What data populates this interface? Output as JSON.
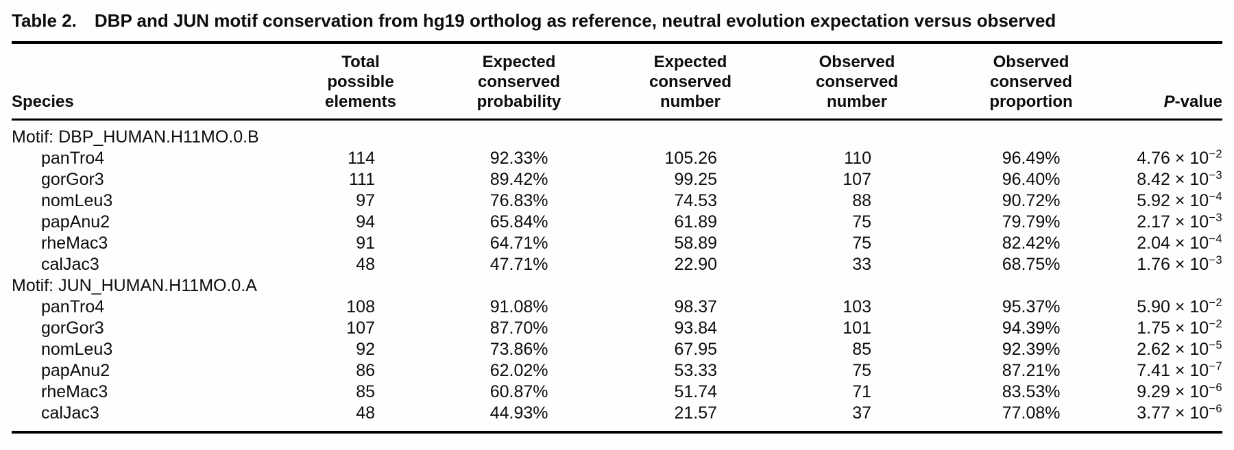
{
  "table": {
    "title_label": "Table 2.",
    "title_text": "DBP and JUN motif conservation from hg19 ortholog as reference, neutral evolution expectation versus observed",
    "columns": [
      {
        "key": "species",
        "label_lines": [
          "Species"
        ]
      },
      {
        "key": "total-possible-elements",
        "label_lines": [
          "Total possible",
          "elements"
        ]
      },
      {
        "key": "expected-conserved-probability",
        "label_lines": [
          "Expected",
          "conserved",
          "probability"
        ]
      },
      {
        "key": "expected-conserved-number",
        "label_lines": [
          "Expected",
          "conserved",
          "number"
        ]
      },
      {
        "key": "observed-conserved-number",
        "label_lines": [
          "Observed",
          "conserved",
          "number"
        ]
      },
      {
        "key": "observed-conserved-proportion",
        "label_lines": [
          "Observed",
          "conserved",
          "proportion"
        ]
      },
      {
        "key": "p-value",
        "label_lines": [
          "P-value"
        ],
        "italic_first_char": true
      }
    ],
    "groups": [
      {
        "motif_label": "Motif: DBP_HUMAN.H11MO.0.B",
        "rows": [
          {
            "species": "panTro4",
            "total": "114",
            "exp_prob": "92.33%",
            "exp_num": "105.26",
            "obs_num": "110",
            "obs_prop": "96.49%",
            "p_mantissa": "4.76",
            "p_exponent": "−2"
          },
          {
            "species": "gorGor3",
            "total": "111",
            "exp_prob": "89.42%",
            "exp_num": "99.25",
            "obs_num": "107",
            "obs_prop": "96.40%",
            "p_mantissa": "8.42",
            "p_exponent": "−3"
          },
          {
            "species": "nomLeu3",
            "total": "97",
            "exp_prob": "76.83%",
            "exp_num": "74.53",
            "obs_num": "88",
            "obs_prop": "90.72%",
            "p_mantissa": "5.92",
            "p_exponent": "−4"
          },
          {
            "species": "papAnu2",
            "total": "94",
            "exp_prob": "65.84%",
            "exp_num": "61.89",
            "obs_num": "75",
            "obs_prop": "79.79%",
            "p_mantissa": "2.17",
            "p_exponent": "−3"
          },
          {
            "species": "rheMac3",
            "total": "91",
            "exp_prob": "64.71%",
            "exp_num": "58.89",
            "obs_num": "75",
            "obs_prop": "82.42%",
            "p_mantissa": "2.04",
            "p_exponent": "−4"
          },
          {
            "species": "calJac3",
            "total": "48",
            "exp_prob": "47.71%",
            "exp_num": "22.90",
            "obs_num": "33",
            "obs_prop": "68.75%",
            "p_mantissa": "1.76",
            "p_exponent": "−3"
          }
        ]
      },
      {
        "motif_label": "Motif: JUN_HUMAN.H11MO.0.A",
        "rows": [
          {
            "species": "panTro4",
            "total": "108",
            "exp_prob": "91.08%",
            "exp_num": "98.37",
            "obs_num": "103",
            "obs_prop": "95.37%",
            "p_mantissa": "5.90",
            "p_exponent": "−2"
          },
          {
            "species": "gorGor3",
            "total": "107",
            "exp_prob": "87.70%",
            "exp_num": "93.84",
            "obs_num": "101",
            "obs_prop": "94.39%",
            "p_mantissa": "1.75",
            "p_exponent": "−2"
          },
          {
            "species": "nomLeu3",
            "total": "92",
            "exp_prob": "73.86%",
            "exp_num": "67.95",
            "obs_num": "85",
            "obs_prop": "92.39%",
            "p_mantissa": "2.62",
            "p_exponent": "−5"
          },
          {
            "species": "papAnu2",
            "total": "86",
            "exp_prob": "62.02%",
            "exp_num": "53.33",
            "obs_num": "75",
            "obs_prop": "87.21%",
            "p_mantissa": "7.41",
            "p_exponent": "−7"
          },
          {
            "species": "rheMac3",
            "total": "85",
            "exp_prob": "60.87%",
            "exp_num": "51.74",
            "obs_num": "71",
            "obs_prop": "83.53%",
            "p_mantissa": "9.29",
            "p_exponent": "−6"
          },
          {
            "species": "calJac3",
            "total": "48",
            "exp_prob": "44.93%",
            "exp_num": "21.57",
            "obs_num": "37",
            "obs_prop": "77.08%",
            "p_mantissa": "3.77",
            "p_exponent": "−6"
          }
        ]
      }
    ],
    "times_ten_label": " × 10"
  }
}
